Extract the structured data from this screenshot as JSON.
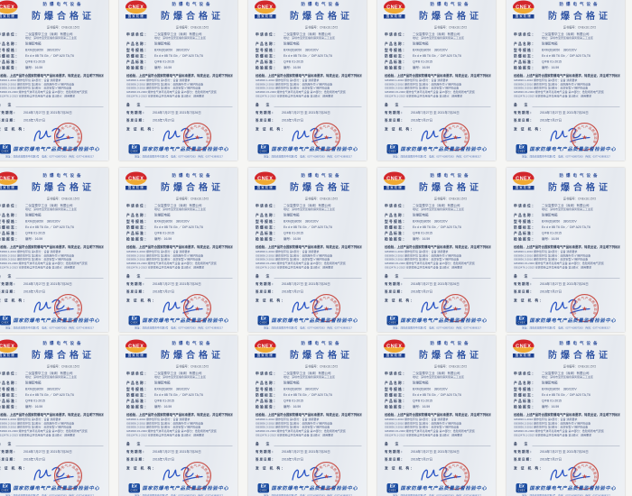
{
  "page": {
    "background": "#f6f6f4"
  },
  "grid": {
    "rows": 3,
    "cols": 5
  },
  "colors": {
    "paper": "#e9edf2",
    "title_blue": "#2d52a2",
    "logo_red": "#d2262b",
    "logo_gold": "#f0a933",
    "navy": "#1b3f8f",
    "seal_red": "#c5382e",
    "signature_blue": "#2b55c4",
    "footer_blue": "#1d4ea3"
  },
  "certificate": {
    "logo": {
      "brand": "CNEX",
      "subtitle": "国家防爆"
    },
    "equipment_line": "防爆电气设备",
    "title": "防爆合格证",
    "cert_no": "证书编号：CNEx16.1572",
    "fields": [
      {
        "label": "申请单位：",
        "value": "二仪富泰华工业（深圳）有限公司",
        "value2": "地址：深圳市宝安区福永镇凤凰第三工业区"
      },
      {
        "label": "产品名称：",
        "value": "防爆配电箱"
      },
      {
        "label": "型号规格：",
        "value": "BXM(D)8050　380/220V"
      },
      {
        "label": "防爆标志：",
        "value": "Ex d e ⅡB T6 Gb ／ DIP A20 TA,T6"
      },
      {
        "label": "产品标准：",
        "value": "Q/FB 01-2015"
      },
      {
        "label": "检验报告：",
        "value": "编号：16.59"
      }
    ],
    "statement": "经检验，上述产品符合国家防爆电气产品标准要求，特发此证，并注明下列标准：",
    "standards": [
      "GB3836.1-2010 爆炸性环境 第1部分：设备 通用要求",
      "GB3836.2-2010 爆炸性环境 第2部分：由隔爆外壳“d”保护的设备",
      "GB3836.3-2010 爆炸性环境 第3部分：由增安型“e”保护的设备",
      "GB3836.15-2000 爆炸性气体环境用电气设备 第15部分：危险场所电气安装",
      "GB12476.1-2013 可燃性粉尘环境用电气设备 第1部分：通用要求"
    ],
    "remark_label": "备　注",
    "validity_label": "有效期限：",
    "validity_value": "2016年7月27日 至 2021年7月26日",
    "issue_label": "签发日期：",
    "issue_value": "2016年7月27日",
    "issuer_label": "发 证 机 构：",
    "seal_text": "国家防爆电气产品质量监督检验中心",
    "footer": {
      "ex_mark": "Ex",
      "ex_sub": "CNEX",
      "center_name": "国家防爆电气产品质量监督检验中心",
      "contact": "地址：河南省南阳市中光路3号　电话：0377-63807263　传真：0377-63808217"
    }
  }
}
